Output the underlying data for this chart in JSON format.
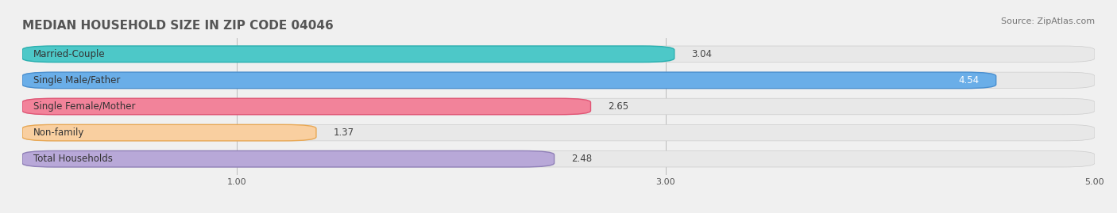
{
  "title": "MEDIAN HOUSEHOLD SIZE IN ZIP CODE 04046",
  "source": "Source: ZipAtlas.com",
  "categories": [
    "Married-Couple",
    "Single Male/Father",
    "Single Female/Mother",
    "Non-family",
    "Total Households"
  ],
  "values": [
    3.04,
    4.54,
    2.65,
    1.37,
    2.48
  ],
  "bar_colors": [
    "#4dc8c8",
    "#6aaee8",
    "#f2839a",
    "#f9cfa0",
    "#b8a8d8"
  ],
  "bar_edge_colors": [
    "#2ab0b0",
    "#4a8fcf",
    "#e05575",
    "#e8a855",
    "#9080b8"
  ],
  "xlim": [
    0,
    5.0
  ],
  "xticks": [
    1.0,
    3.0,
    5.0
  ],
  "background_color": "#f0f0f0",
  "bar_bg_color": "#e8e8e8",
  "title_fontsize": 11,
  "label_fontsize": 8.5,
  "value_fontsize": 8.5,
  "source_fontsize": 8
}
